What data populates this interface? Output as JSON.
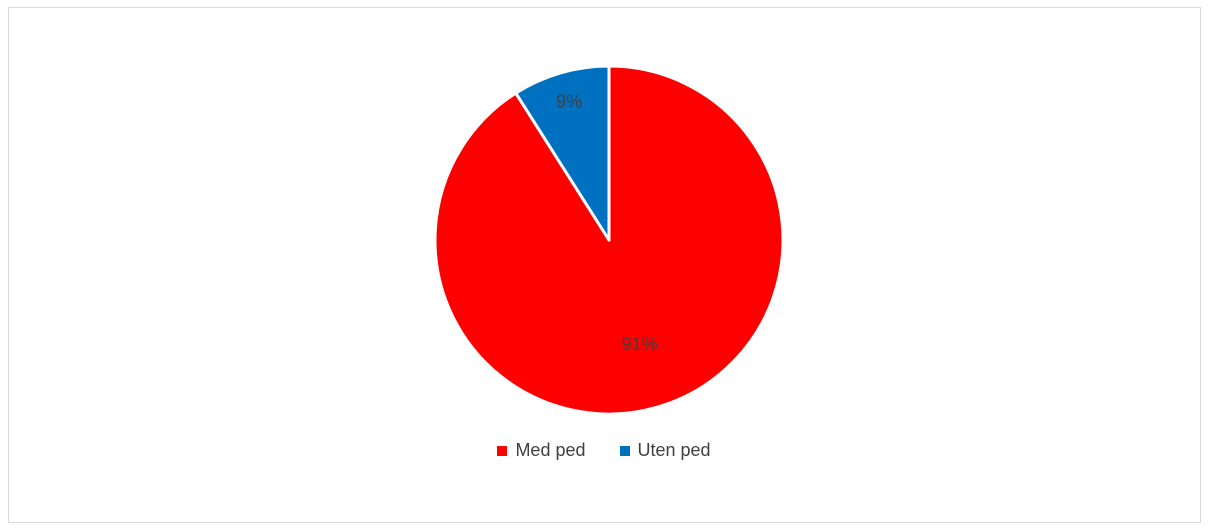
{
  "chart_data": {
    "type": "pie",
    "title": "",
    "categories": [
      "Med ped",
      "Uten ped"
    ],
    "values": [
      91,
      9
    ],
    "value_labels": [
      "91%",
      "9%"
    ],
    "colors": [
      "#ff0000",
      "#0070c0"
    ],
    "start_angle": "12 o'clock",
    "direction": "clockwise",
    "legend": {
      "position": "bottom",
      "entries": [
        {
          "label": "Med ped",
          "color": "#ff0000"
        },
        {
          "label": "Uten ped",
          "color": "#0070c0"
        }
      ]
    }
  }
}
